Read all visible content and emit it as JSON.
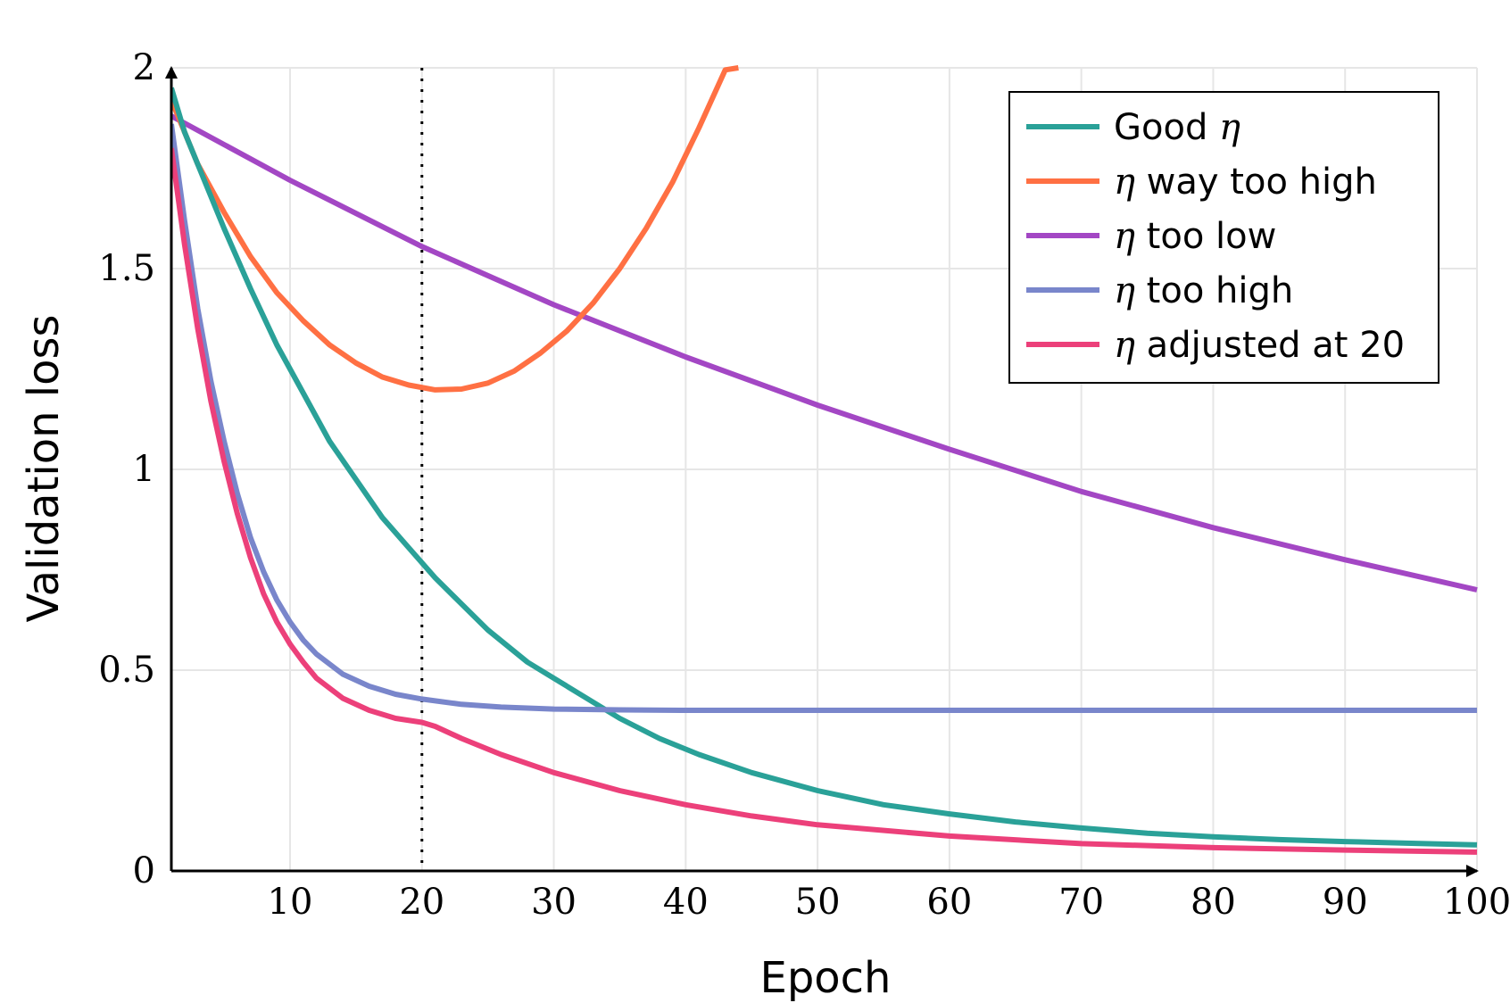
{
  "chart_data": {
    "type": "line",
    "title": "",
    "xlabel": "Epoch",
    "ylabel": "Validation loss",
    "xlim": [
      1,
      100
    ],
    "ylim": [
      0,
      2
    ],
    "xticks": [
      10,
      20,
      30,
      40,
      50,
      60,
      70,
      80,
      90,
      100
    ],
    "xtick_labels": [
      "10",
      "20",
      "30",
      "40",
      "50",
      "60",
      "70",
      "80",
      "90",
      "100"
    ],
    "yticks": [
      0,
      0.5,
      1,
      1.5,
      2
    ],
    "ytick_labels": [
      "0",
      "0.5",
      "1",
      "1.5",
      "2"
    ],
    "grid": true,
    "legend_position": "top-right",
    "annotations": [
      {
        "type": "vertical-dotted-line",
        "x": 20
      }
    ],
    "series": [
      {
        "name": "Good η",
        "prefix": "Good ",
        "eta_first": false,
        "suffix": "",
        "color": "#2aa198",
        "x": [
          1,
          2,
          4,
          5,
          7,
          9,
          11,
          13,
          15,
          17,
          19,
          21,
          23,
          25,
          28,
          31,
          35,
          38,
          41,
          45,
          50,
          55,
          60,
          65,
          70,
          75,
          80,
          85,
          90,
          95,
          100
        ],
        "y": [
          1.95,
          1.84,
          1.68,
          1.6,
          1.45,
          1.31,
          1.19,
          1.07,
          0.975,
          0.88,
          0.805,
          0.73,
          0.665,
          0.6,
          0.52,
          0.46,
          0.38,
          0.33,
          0.29,
          0.245,
          0.2,
          0.165,
          0.142,
          0.122,
          0.107,
          0.094,
          0.085,
          0.078,
          0.073,
          0.069,
          0.065
        ]
      },
      {
        "name": "η way too high",
        "prefix": "",
        "eta_first": true,
        "suffix": " way too high",
        "color": "#ff7043",
        "x": [
          1,
          3,
          5,
          7,
          9,
          11,
          13,
          15,
          17,
          19,
          21,
          23,
          25,
          27,
          29,
          31,
          33,
          35,
          37,
          39,
          41,
          43,
          44
        ],
        "y": [
          1.92,
          1.76,
          1.64,
          1.53,
          1.44,
          1.37,
          1.31,
          1.265,
          1.23,
          1.21,
          1.198,
          1.2,
          1.215,
          1.245,
          1.29,
          1.345,
          1.415,
          1.5,
          1.6,
          1.715,
          1.85,
          1.995,
          2.0
        ]
      },
      {
        "name": "η too low",
        "prefix": "",
        "eta_first": true,
        "suffix": " too low",
        "color": "#a347c4",
        "x": [
          1,
          10,
          20,
          30,
          40,
          50,
          60,
          70,
          80,
          90,
          100
        ],
        "y": [
          1.88,
          1.72,
          1.555,
          1.41,
          1.28,
          1.16,
          1.05,
          0.945,
          0.855,
          0.775,
          0.7
        ]
      },
      {
        "name": "η too high",
        "prefix": "",
        "eta_first": true,
        "suffix": " too high",
        "color": "#7986cb",
        "x": [
          1,
          2,
          3,
          4,
          5,
          6,
          7,
          8,
          9,
          10,
          11,
          12,
          14,
          16,
          18,
          20,
          23,
          26,
          30,
          35,
          40,
          50,
          60,
          70,
          80,
          90,
          100
        ],
        "y": [
          1.86,
          1.62,
          1.4,
          1.22,
          1.07,
          0.94,
          0.83,
          0.745,
          0.675,
          0.62,
          0.575,
          0.54,
          0.49,
          0.46,
          0.44,
          0.428,
          0.415,
          0.408,
          0.403,
          0.401,
          0.4,
          0.4,
          0.4,
          0.4,
          0.4,
          0.4,
          0.4
        ]
      },
      {
        "name": "η adjusted at 20",
        "prefix": "",
        "eta_first": true,
        "suffix": " adjusted at 20",
        "color": "#ec407a",
        "x": [
          1,
          2,
          3,
          4,
          5,
          6,
          7,
          8,
          9,
          10,
          11,
          12,
          14,
          16,
          18,
          20,
          21,
          23,
          26,
          30,
          35,
          40,
          45,
          50,
          60,
          70,
          80,
          90,
          100
        ],
        "y": [
          1.8,
          1.56,
          1.35,
          1.17,
          1.02,
          0.89,
          0.78,
          0.69,
          0.62,
          0.565,
          0.52,
          0.48,
          0.43,
          0.4,
          0.38,
          0.37,
          0.36,
          0.33,
          0.29,
          0.245,
          0.2,
          0.165,
          0.137,
          0.115,
          0.087,
          0.068,
          0.058,
          0.052,
          0.047
        ]
      }
    ]
  }
}
